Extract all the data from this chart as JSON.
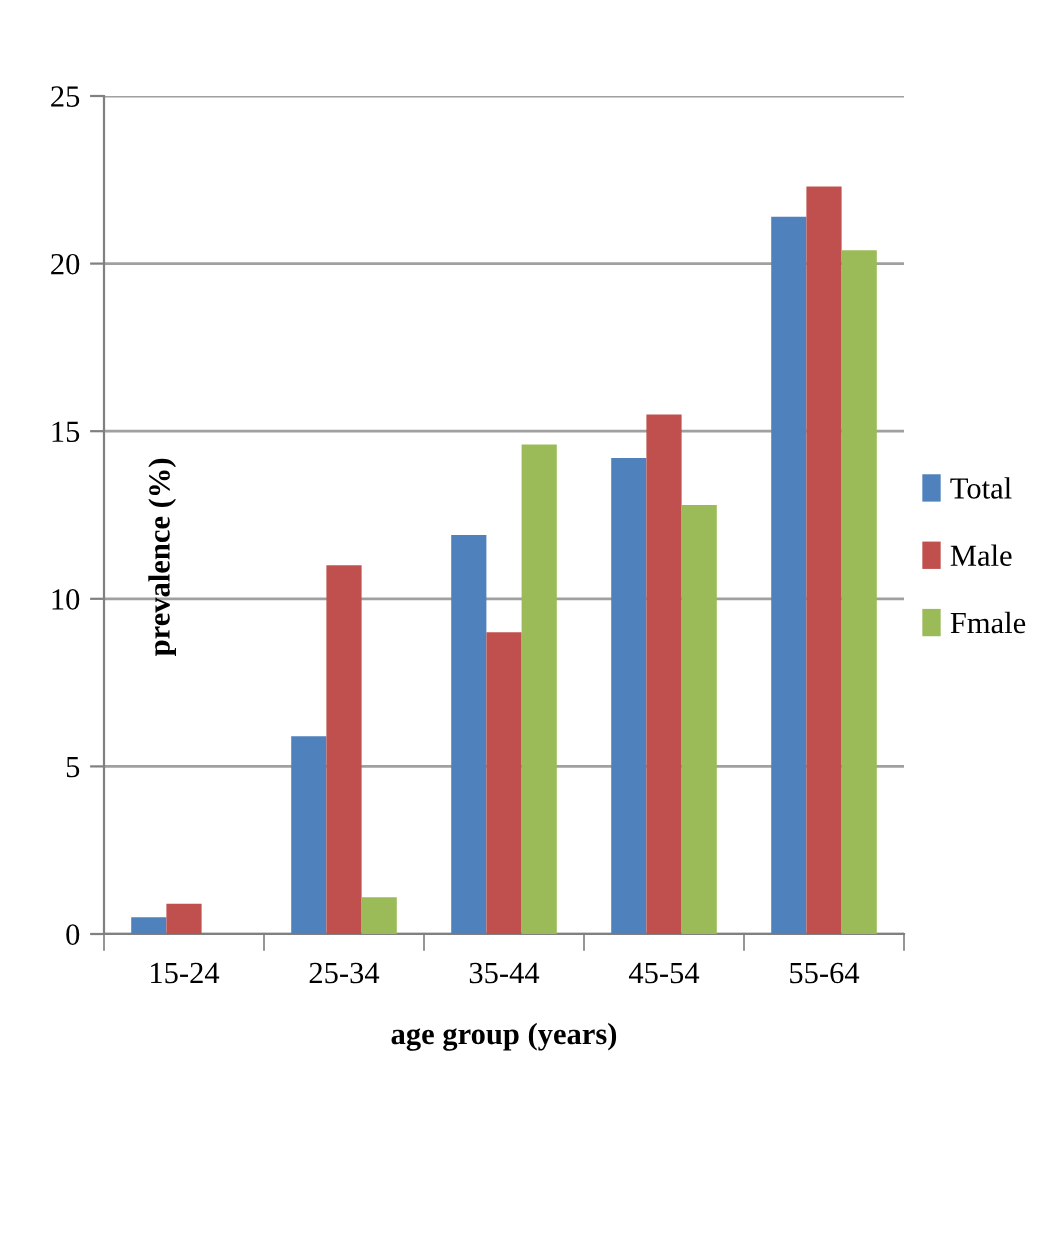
{
  "chart_data": {
    "type": "bar",
    "xlabel": "age group (years)",
    "ylabel": "prevalence (%)",
    "categories": [
      "15-24",
      "25-34",
      "35-44",
      "45-54",
      "55-64"
    ],
    "series": [
      {
        "name": "Total",
        "color": "#4f81bd",
        "values": [
          0.5,
          5.9,
          11.9,
          14.2,
          21.4
        ]
      },
      {
        "name": "Male",
        "color": "#c0504d",
        "values": [
          0.9,
          11.0,
          9.0,
          15.5,
          22.3
        ]
      },
      {
        "name": "Fmale",
        "color": "#9bbb59",
        "values": [
          0,
          1.1,
          14.6,
          12.8,
          20.4
        ]
      }
    ],
    "ylim": [
      0,
      25
    ],
    "yticks": [
      0,
      5,
      10,
      15,
      20,
      25
    ],
    "grid": "y",
    "legend": "right"
  }
}
